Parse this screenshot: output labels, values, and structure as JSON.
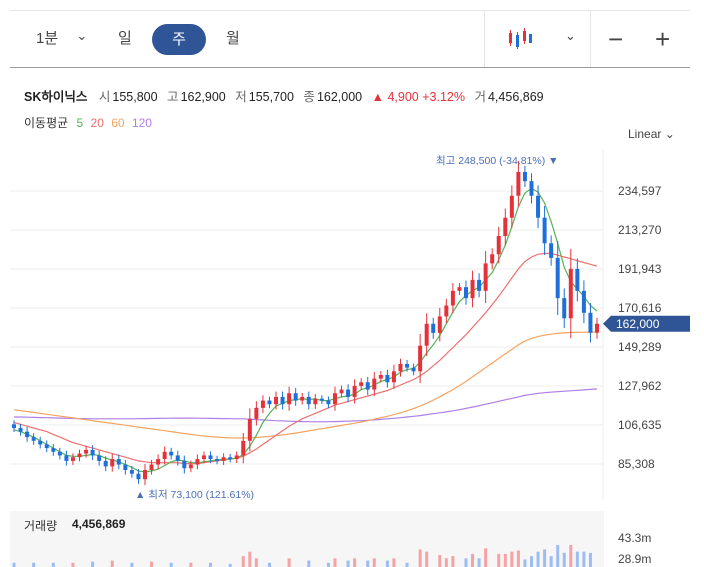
{
  "toolbar": {
    "period_minute": "1분",
    "period_day": "일",
    "period_week": "주",
    "period_month": "월",
    "chevron": "⌄",
    "zoom_out": "−",
    "zoom_in": "+"
  },
  "stock": {
    "name": "SK하이닉스",
    "open_label": "시",
    "open": "155,800",
    "high_label": "고",
    "high": "162,900",
    "low_label": "저",
    "low": "155,700",
    "close_label": "종",
    "close": "162,000",
    "change": "▲ 4,900",
    "change_pct": "+3.12%",
    "volume_label": "거",
    "volume": "4,456,869"
  },
  "moving_average": {
    "label": "이동평균",
    "ma5": "5",
    "ma20": "20",
    "ma60": "60",
    "ma120": "120"
  },
  "scale_mode": "Linear ⌄",
  "volume_panel": {
    "label": "거래량",
    "value": "4,456,869",
    "tick_top": "43.3m",
    "tick_mid": "28.9m"
  },
  "colors": {
    "up": "#e4323a",
    "down": "#1e6fd9",
    "ma5": "#58b158",
    "ma20": "#ee7070",
    "ma60": "#f4a460",
    "ma120": "#b07ee8",
    "accent": "#2f5597"
  },
  "chart_data": {
    "type": "candlestick",
    "y_ticks": [
      234597,
      213270,
      191943,
      170616,
      149289,
      127962,
      106635,
      85308
    ],
    "y_tick_labels": [
      "234,597",
      "213,270",
      "191,943",
      "170,616",
      "149,289",
      "127,962",
      "106,635",
      "85,308"
    ],
    "current_price": 162000,
    "current_price_label": "162,000",
    "max_annotation": "최고 248,500 (-34.81%)",
    "min_annotation": "최저 73,100 (121.61%)",
    "max_value": 248500,
    "min_value": 73100,
    "close": [
      105000,
      103000,
      100000,
      98000,
      96000,
      94000,
      92000,
      90000,
      87000,
      89000,
      91000,
      93000,
      90000,
      87000,
      84000,
      88000,
      85000,
      82000,
      80000,
      77000,
      82000,
      85000,
      88000,
      92000,
      90000,
      87000,
      83000,
      85000,
      88000,
      90000,
      88000,
      87000,
      89000,
      88000,
      90000,
      98000,
      110000,
      116000,
      120000,
      118000,
      122000,
      118000,
      124000,
      120000,
      122000,
      118000,
      121000,
      120000,
      118000,
      124000,
      126000,
      122000,
      128000,
      130000,
      126000,
      132000,
      134000,
      130000,
      136000,
      140000,
      138000,
      136000,
      150000,
      162000,
      157000,
      166000,
      172000,
      180000,
      182000,
      176000,
      186000,
      180000,
      195000,
      200000,
      210000,
      220000,
      232000,
      245000,
      240000,
      232000,
      220000,
      206000,
      198000,
      176000,
      165000,
      192000,
      180000,
      168000,
      157100,
      162000
    ],
    "ma5": [
      104000,
      103000,
      101500,
      100000,
      98000,
      96000,
      94000,
      92000,
      90000,
      89500,
      89500,
      90000,
      90500,
      90000,
      88500,
      87500,
      86500,
      85000,
      83500,
      81500,
      81000,
      81500,
      82500,
      84500,
      86500,
      87500,
      87000,
      86000,
      86000,
      86500,
      87000,
      87500,
      88000,
      88000,
      88500,
      90500,
      95000,
      101000,
      108000,
      113000,
      117000,
      118500,
      120000,
      120500,
      121000,
      120500,
      121000,
      120000,
      120000,
      121000,
      122000,
      122500,
      123500,
      126000,
      127000,
      128500,
      130500,
      131500,
      133000,
      135500,
      137000,
      137500,
      141000,
      146000,
      150500,
      155500,
      162000,
      168500,
      174000,
      177500,
      180000,
      182000,
      186000,
      190000,
      197000,
      205000,
      215000,
      226000,
      233500,
      236000,
      234000,
      228000,
      218000,
      206000,
      193000,
      185000,
      181000,
      177000,
      172000,
      169000
    ],
    "ma20": [
      108000,
      107000,
      106000,
      105000,
      104000,
      103000,
      101500,
      100000,
      98500,
      97000,
      96000,
      95000,
      94000,
      93000,
      92000,
      91000,
      90000,
      89000,
      88000,
      87000,
      86500,
      86000,
      86000,
      86000,
      86000,
      86000,
      85500,
      85500,
      85500,
      86000,
      86500,
      87000,
      87500,
      88000,
      88500,
      89500,
      91500,
      93500,
      96000,
      98500,
      101000,
      103500,
      106000,
      108000,
      110000,
      111500,
      113000,
      114500,
      116000,
      117500,
      118500,
      119500,
      120500,
      121500,
      122500,
      123500,
      124500,
      125500,
      127000,
      128500,
      130000,
      131500,
      133500,
      136000,
      139000,
      142000,
      145500,
      149000,
      152500,
      156000,
      160000,
      164000,
      168000,
      172500,
      177000,
      182000,
      187000,
      192000,
      196000,
      198500,
      200000,
      200500,
      200500,
      199500,
      198500,
      197500,
      196500,
      195500,
      194500,
      193500
    ],
    "ma60": [
      115000,
      114500,
      114000,
      113500,
      113000,
      112500,
      112000,
      111500,
      111000,
      110500,
      110000,
      109500,
      109000,
      108500,
      108000,
      107500,
      107000,
      106500,
      106000,
      105500,
      105000,
      104500,
      104000,
      103500,
      103000,
      102500,
      102000,
      101500,
      101000,
      100600,
      100300,
      100000,
      99800,
      99600,
      99500,
      99500,
      99600,
      99800,
      100100,
      100400,
      100800,
      101200,
      101700,
      102200,
      102800,
      103400,
      104000,
      104600,
      105200,
      105800,
      106400,
      107000,
      107600,
      108300,
      109000,
      109800,
      110600,
      111400,
      112300,
      113300,
      114400,
      115600,
      117000,
      118500,
      120200,
      122000,
      124000,
      126000,
      128200,
      130500,
      133000,
      135500,
      138000,
      140500,
      143000,
      145500,
      148000,
      150500,
      152500,
      154000,
      155000,
      155800,
      156300,
      156700,
      157000,
      157200,
      157300,
      157400,
      157450,
      157500
    ],
    "ma120": [
      111000,
      111000,
      110900,
      110800,
      110700,
      110600,
      110500,
      110400,
      110300,
      110200,
      110150,
      110100,
      110050,
      110000,
      110000,
      110000,
      110000,
      110000,
      110050,
      110100,
      110150,
      110200,
      110250,
      110300,
      110350,
      110400,
      110400,
      110400,
      110350,
      110300,
      110250,
      110200,
      110150,
      110100,
      110050,
      110000,
      109800,
      109600,
      109400,
      109200,
      109000,
      108850,
      108700,
      108600,
      108500,
      108450,
      108400,
      108400,
      108450,
      108500,
      108600,
      108700,
      108850,
      109000,
      109200,
      109450,
      109700,
      110000,
      110300,
      110650,
      111000,
      111400,
      111800,
      112300,
      112800,
      113300,
      113800,
      114400,
      115000,
      115700,
      116400,
      117200,
      118000,
      118800,
      119600,
      120400,
      121200,
      122000,
      122800,
      123400,
      123900,
      124300,
      124600,
      124850,
      125100,
      125350,
      125600,
      125850,
      126100,
      126300
    ]
  }
}
